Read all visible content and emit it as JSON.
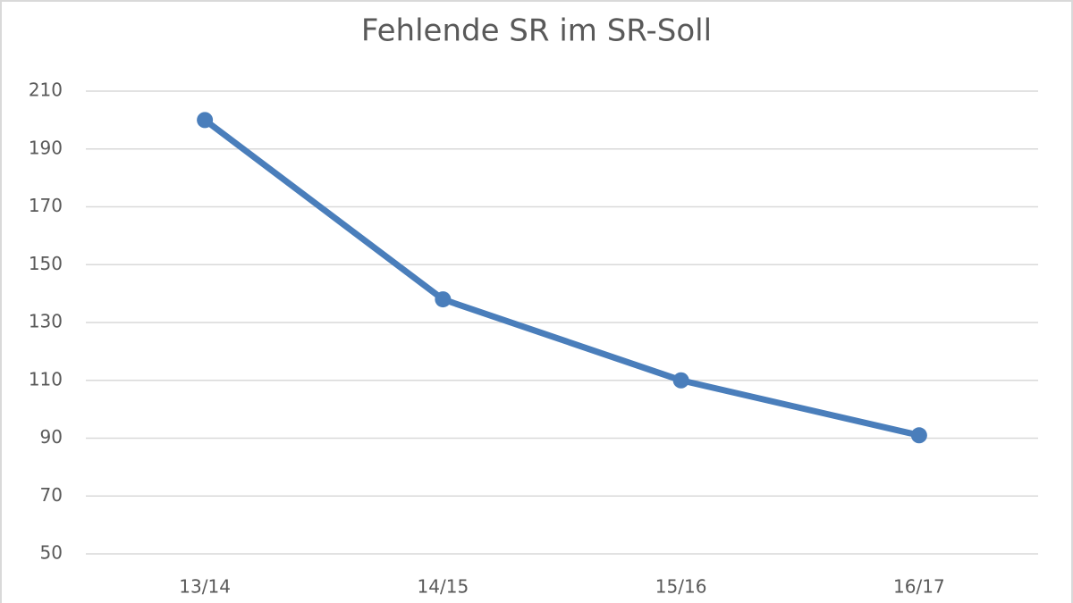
{
  "chart_data": {
    "type": "line",
    "title": "Fehlende SR im SR-Soll",
    "categories": [
      "13/14",
      "14/15",
      "15/16",
      "16/17"
    ],
    "series": [
      {
        "name": "Fehlende SR",
        "color": "#4a7ebb",
        "values": [
          200,
          138,
          110,
          91
        ]
      }
    ],
    "ylim": [
      50,
      210
    ],
    "yticks": [
      50,
      70,
      90,
      110,
      130,
      150,
      170,
      190,
      210
    ],
    "grid": true
  }
}
